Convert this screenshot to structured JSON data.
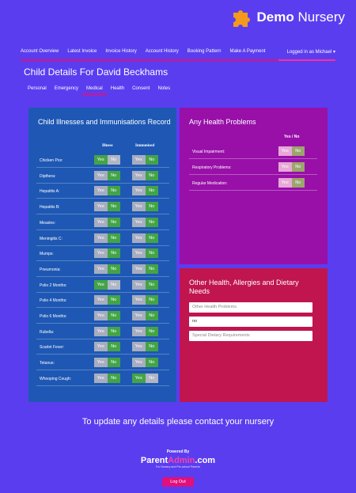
{
  "brand": {
    "bold": "Demo",
    "rest": " Nursery"
  },
  "nav": {
    "items": [
      "Account Overview",
      "Latest Invoice",
      "Invoice History",
      "Account History",
      "Booking Pattern",
      "Make A Payment"
    ],
    "login": "Logged in as Michael ▾"
  },
  "page_title": "Child Details For David Beckhams",
  "tabs": [
    "Personal",
    "Emergency",
    "Medical",
    "Health",
    "Consent",
    "Notes"
  ],
  "illnesses": {
    "title": "Child Illnesses and Immunisations Record",
    "col_illness": "Illness",
    "col_immunised": "Immunised",
    "yes": "Yes",
    "no": "No",
    "rows": [
      {
        "label": "Chicken Pox:",
        "illness": "yes",
        "immunised": "no"
      },
      {
        "label": "Dipthera:",
        "illness": "no",
        "immunised": "no"
      },
      {
        "label": "Hepatitis A:",
        "illness": "no",
        "immunised": "no"
      },
      {
        "label": "Hepatitis B:",
        "illness": "no",
        "immunised": "no"
      },
      {
        "label": "Measles:",
        "illness": "no",
        "immunised": "no"
      },
      {
        "label": "Meningitis C:",
        "illness": "no",
        "immunised": "no"
      },
      {
        "label": "Mumps:",
        "illness": "no",
        "immunised": "no"
      },
      {
        "label": "Pneumonia:",
        "illness": "no",
        "immunised": "no"
      },
      {
        "label": "Polio 2 Months:",
        "illness": "yes",
        "immunised": "no"
      },
      {
        "label": "Polio 4 Months:",
        "illness": "no",
        "immunised": "no"
      },
      {
        "label": "Polio 6 Months:",
        "illness": "no",
        "immunised": "no"
      },
      {
        "label": "Rubella:",
        "illness": "no",
        "immunised": "no"
      },
      {
        "label": "Scarlet Fever:",
        "illness": "no",
        "immunised": "no"
      },
      {
        "label": "Tetanus:",
        "illness": "no",
        "immunised": "no"
      },
      {
        "label": "Whooping Cough:",
        "illness": "no",
        "immunised": "yes"
      }
    ]
  },
  "health": {
    "title": "Any Health Problems",
    "col": "Yes / No",
    "rows": [
      {
        "label": "Visual Impairment:",
        "value": "no"
      },
      {
        "label": "Respiratory Problems:",
        "value": "no"
      },
      {
        "label": "Regular Medication:",
        "value": "no"
      }
    ]
  },
  "other": {
    "title": "Other Health, Allergies and Dietary Needs",
    "fields": [
      {
        "placeholder": "Other Health Problems",
        "value": ""
      },
      {
        "placeholder": "",
        "value": "no"
      },
      {
        "placeholder": "Special Dietary Requirements",
        "value": ""
      }
    ]
  },
  "contact_note": "To update any details please contact your nursery",
  "footer": {
    "powered": "Powered By",
    "pa_parent": "Parent",
    "pa_admin": "Admin",
    "pa_com": ".com",
    "tagline": "For Nursery and Pre-school Parents",
    "logout": "Log Out"
  },
  "colors": {
    "bg": "#5b3df0",
    "accent": "#e0107c",
    "illness_panel": "#1e58b4",
    "health_panel": "#9810a8",
    "other_panel": "#c0154f",
    "toggle_on": "#43a447"
  }
}
